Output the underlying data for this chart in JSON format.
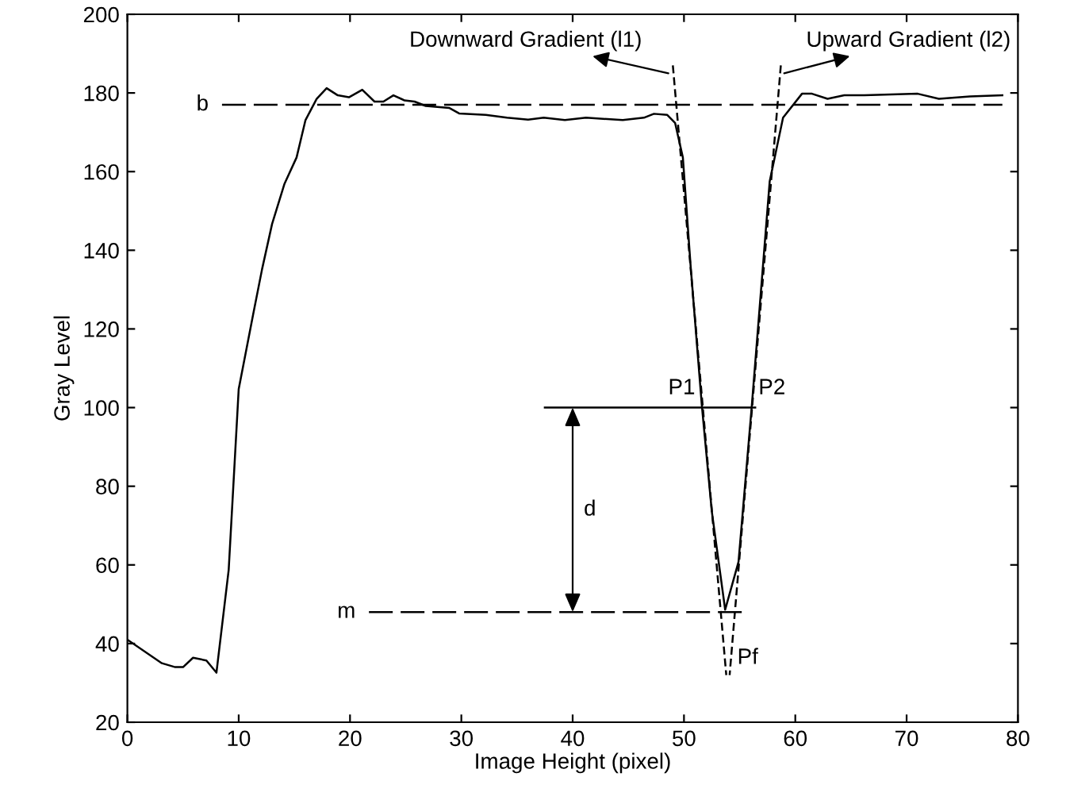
{
  "chart_data": {
    "type": "line",
    "xlabel": "Image Height (pixel)",
    "ylabel": "Gray Level",
    "xlim": [
      0,
      80
    ],
    "xticks": [
      0,
      10,
      20,
      30,
      40,
      50,
      60,
      70,
      80
    ],
    "ylim": [
      20,
      200
    ],
    "yticks": [
      20,
      40,
      60,
      80,
      100,
      120,
      140,
      160,
      180,
      200
    ],
    "grid": false,
    "legend": false,
    "marker": "none",
    "series": [
      {
        "color": "#000000",
        "line_style": "solid",
        "x": [
          0,
          3.1,
          4.3,
          5.0,
          5.9,
          7.1,
          8.0,
          9.1,
          10.0,
          11.3,
          12.1,
          13.0,
          14.1,
          15.2,
          16.0,
          17.0,
          17.9,
          18.9,
          19.9,
          21.1,
          22.2,
          23.0,
          23.9,
          24.9,
          25.8,
          26.8,
          28.9,
          29.8,
          32.2,
          34.1,
          36.0,
          37.4,
          39.3,
          41.2,
          44.5,
          46.4,
          47.3,
          48.5,
          49.2,
          49.9,
          50.6,
          51.6,
          52.5,
          53.7,
          54.9,
          56.1,
          57.7,
          58.9,
          60.6,
          61.5,
          62.9,
          64.4,
          66.2,
          71.0,
          72.9,
          75.7,
          78.6
        ],
        "values": [
          41,
          35.0,
          34.0,
          34.0,
          36.4,
          35.7,
          32.6,
          58.7,
          104.7,
          123.7,
          135.2,
          146.7,
          156.8,
          163.6,
          173.1,
          178.5,
          181.2,
          179.4,
          178.9,
          180.8,
          177.8,
          177.8,
          179.4,
          178.1,
          177.8,
          176.7,
          176.2,
          174.8,
          174.4,
          173.7,
          173.2,
          173.7,
          173.1,
          173.7,
          173.1,
          173.7,
          174.7,
          174.4,
          172.4,
          163.6,
          135.9,
          100.7,
          73.6,
          48.6,
          60.8,
          100.7,
          157.5,
          173.7,
          179.8,
          179.8,
          178.5,
          179.4,
          179.4,
          179.8,
          178.5,
          179.1,
          179.4
        ]
      },
      {
        "color": "#000000",
        "line_style": "dashed",
        "x": [
          49.0,
          53.8
        ],
        "values": [
          187,
          32
        ]
      },
      {
        "color": "#000000",
        "line_style": "dashed",
        "x": [
          58.7,
          54.1
        ],
        "values": [
          187,
          32
        ]
      },
      {
        "name": "b",
        "color": "#000000",
        "line_style": "dashed",
        "x": [
          8.5,
          78.6
        ],
        "values": [
          177,
          177
        ]
      },
      {
        "name": "m",
        "color": "#000000",
        "line_style": "dashed",
        "x": [
          21.7,
          55.6
        ],
        "values": [
          48,
          48
        ]
      },
      {
        "color": "#000000",
        "line_style": "solid",
        "x": [
          37.5,
          56.4
        ],
        "values": [
          100,
          100
        ]
      }
    ],
    "annotations": [
      {
        "text": "Downward Gradient (l1)",
        "x": 48.6,
        "y": 185
      },
      {
        "text": "Upward Gradient (l2)",
        "x": 59.0,
        "y": 185
      },
      {
        "text": "P1",
        "x": 51.6,
        "y": 100
      },
      {
        "text": "P2",
        "x": 56.1,
        "y": 100
      },
      {
        "text": "Pf",
        "x": 54.0,
        "y": 32
      },
      "d"
    ]
  }
}
